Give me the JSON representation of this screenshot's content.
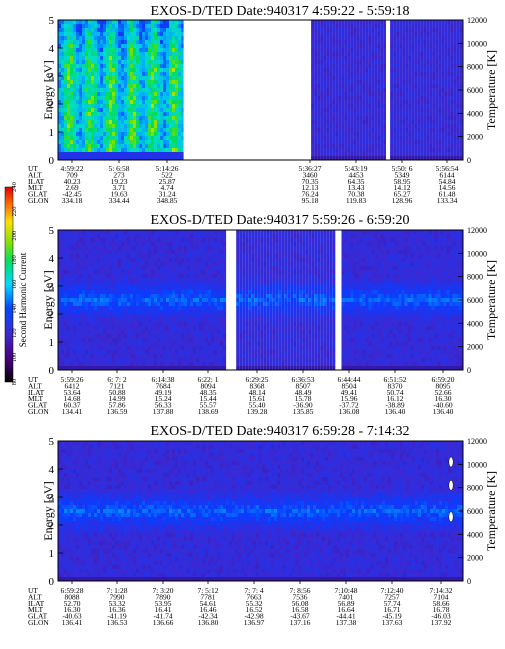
{
  "colorbar": {
    "label": "Second Harmonic Current",
    "ticks": [
      "80",
      "100",
      "120",
      "140",
      "160",
      "180",
      "200",
      "220",
      "240"
    ]
  },
  "chart_data": [
    {
      "type": "heatmap",
      "title": "EXOS-D/TED   Date:940317   4:59:22 - 5:59:18",
      "ylabel": "Energy [eV]",
      "y2label": "Temperature [K]",
      "ylim": [
        0,
        5
      ],
      "y2lim": [
        0,
        12000
      ],
      "yticks": [
        "0",
        "1",
        "2",
        "3",
        "4",
        "5"
      ],
      "y2ticks": [
        "0",
        "2000",
        "4000",
        "6000",
        "8000",
        "10000",
        "12000"
      ],
      "ephemeris_labels": [
        "UT",
        "ALT",
        "ILAT",
        "MLT",
        "GLAT",
        "GLON"
      ],
      "ephemeris": [
        [
          "4:59:22",
          "709",
          "40.23",
          "2.69",
          "-42.45",
          "334.18"
        ],
        [
          "5: 6:58",
          "273",
          "19.23",
          "3.71",
          "19.63",
          "334.44"
        ],
        [
          "5:14:26",
          "522",
          "25.87",
          "4.74",
          "31.24",
          "348.85"
        ],
        [
          "5:36:27",
          "3460",
          "70.35",
          "12.13",
          "76.24",
          "95.18"
        ],
        [
          "5:43:19",
          "4453",
          "64.35",
          "13.43",
          "70.38",
          "119.83"
        ],
        [
          "5:50: 6",
          "5349",
          "58.95",
          "14.12",
          "65.27",
          "128.96"
        ],
        [
          "5:56:54",
          "6144",
          "54.84",
          "14.56",
          "61.48",
          "133.34"
        ]
      ],
      "data_segments": [
        [
          4.99,
          5.31
        ],
        [
          5.55,
          5.895
        ],
        [
          5.905,
          5.99
        ]
      ],
      "dominant_band": "low-energy enhancement 0.5-4.5 eV before 5:17 UT"
    },
    {
      "type": "heatmap",
      "title": "EXOS-D/TED   Date:940317   5:59:26 - 6:59:20",
      "ylabel": "Energy [eV]",
      "y2label": "Temperature [K]",
      "ylim": [
        0,
        5
      ],
      "y2lim": [
        0,
        12000
      ],
      "yticks": [
        "0",
        "1",
        "2",
        "3",
        "4",
        "5"
      ],
      "y2ticks": [
        "0",
        "2000",
        "4000",
        "6000",
        "8000",
        "10000",
        "12000"
      ],
      "ephemeris_labels": [
        "UT",
        "ALT",
        "ILAT",
        "MLT",
        "GLAT",
        "GLON"
      ],
      "ephemeris": [
        [
          "5:59:26",
          "6412",
          "53.64",
          "14.68",
          "60.37",
          "134.41"
        ],
        [
          "6: 7: 2",
          "7121",
          "50.88",
          "14.99",
          "57.86",
          "136.59"
        ],
        [
          "6:14:38",
          "7684",
          "49.19",
          "15.24",
          "56.33",
          "137.88"
        ],
        [
          "6:22: 1",
          "8094",
          "48.35",
          "15.44",
          "55.57",
          "138.69"
        ],
        [
          "6:29:25",
          "8368",
          "48.14",
          "15.61",
          "55.40",
          "139.28"
        ],
        [
          "6:36:53",
          "8507",
          "48.49",
          "15.78",
          "-36.90",
          "135.85"
        ],
        [
          "6:44:44",
          "8504",
          "49.41",
          "15.96",
          "-37.72",
          "136.08"
        ],
        [
          "6:51:52",
          "8370",
          "50.74",
          "16.12",
          "-38.89",
          "136.40"
        ],
        [
          "6:59:20",
          "8095",
          "52.66",
          "16.30",
          "-40.60",
          "136.40"
        ]
      ],
      "data_segments": [
        [
          5.99,
          6.395
        ],
        [
          6.425,
          6.725
        ],
        [
          6.74,
          6.99
        ]
      ],
      "dominant_band": "2.0-3.0 eV"
    },
    {
      "type": "heatmap",
      "title": "EXOS-D/TED   Date:940317   6:59:28 - 7:14:32",
      "ylabel": "Energy [eV]",
      "y2label": "Temperature [K]",
      "ylim": [
        0,
        5
      ],
      "y2lim": [
        0,
        12000
      ],
      "yticks": [
        "0",
        "1",
        "2",
        "3",
        "4",
        "5"
      ],
      "y2ticks": [
        "0",
        "2000",
        "4000",
        "6000",
        "8000",
        "10000",
        "12000"
      ],
      "ephemeris_labels": [
        "UT",
        "ALT",
        "ILAT",
        "MLT",
        "GLAT",
        "GLON"
      ],
      "ephemeris": [
        [
          "6:59:28",
          "8088",
          "52.70",
          "16.30",
          "-40.63",
          "136.41"
        ],
        [
          "7: 1:28",
          "7990",
          "53.32",
          "16.36",
          "-41.19",
          "136.53"
        ],
        [
          "7: 3:20",
          "7890",
          "53.95",
          "16.41",
          "-41.74",
          "136.66"
        ],
        [
          "7: 5:12",
          "7781",
          "54.61",
          "16.46",
          "-42.34",
          "136.80"
        ],
        [
          "7: 7: 4",
          "7663",
          "55.32",
          "16.52",
          "-42.98",
          "136.97"
        ],
        [
          "7: 8:56",
          "7536",
          "56.08",
          "16.58",
          "-43.67",
          "137.16"
        ],
        [
          "7:10:48",
          "7401",
          "56.89",
          "16.64",
          "-44.41",
          "137.38"
        ],
        [
          "7:12:40",
          "7257",
          "57.74",
          "16.71",
          "-45.19",
          "137.63"
        ],
        [
          "7:14:32",
          "7104",
          "58.66",
          "16.78",
          "-46.03",
          "137.92"
        ]
      ],
      "temperature_points": [
        {
          "ut": "7:14:12",
          "temperature": 10200
        },
        {
          "ut": "7:14:12",
          "temperature": 8200
        },
        {
          "ut": "7:14:12",
          "temperature": 5500
        }
      ],
      "dominant_band": "2.2-2.8 eV"
    }
  ]
}
